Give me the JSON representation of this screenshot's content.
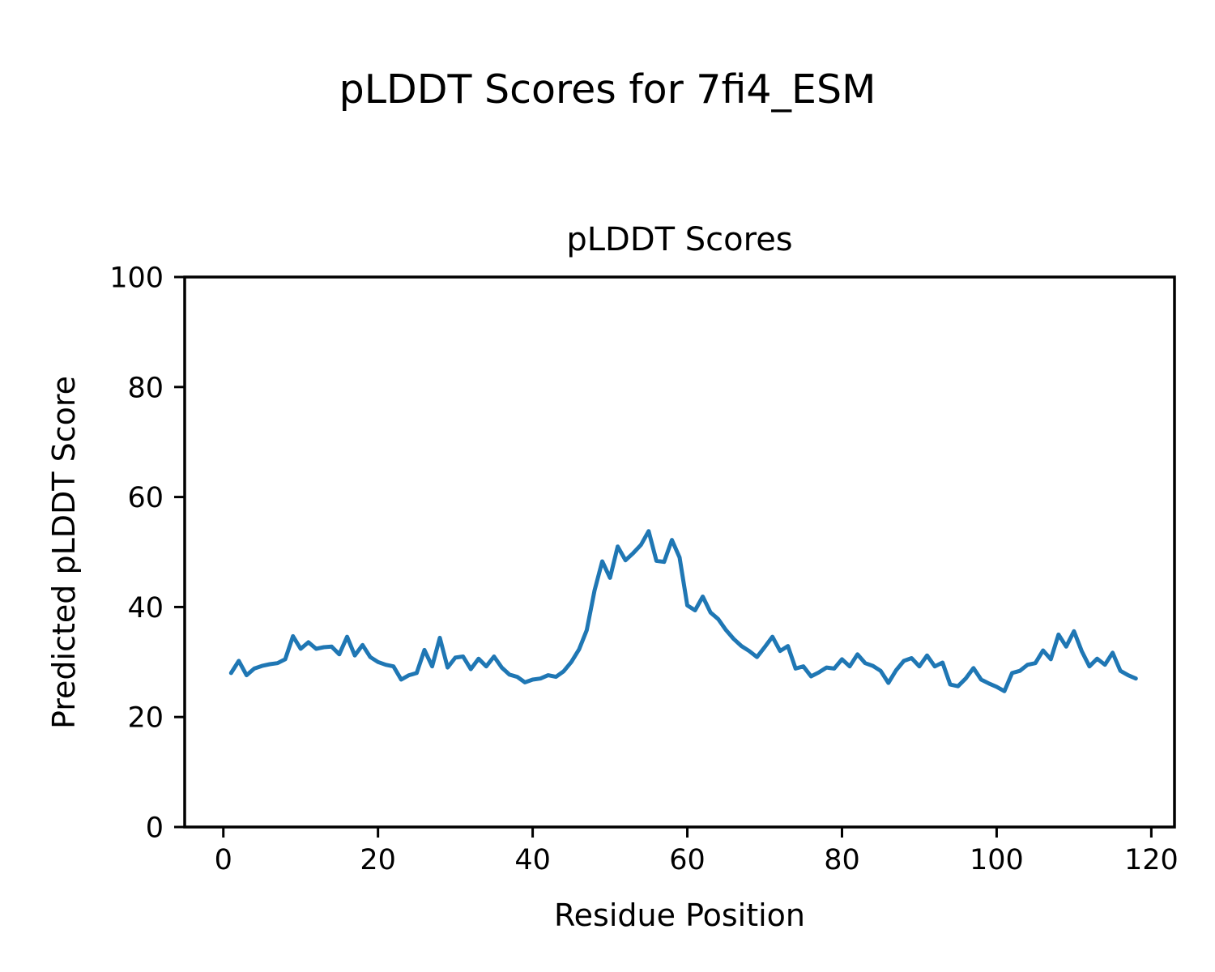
{
  "figure": {
    "suptitle": "pLDDT Scores for 7fi4_ESM"
  },
  "chart_data": {
    "type": "line",
    "title": "pLDDT Scores",
    "xlabel": "Residue Position",
    "ylabel": "Predicted pLDDT Score",
    "xlim": [
      -5,
      123
    ],
    "ylim": [
      0,
      100
    ],
    "xticks": [
      0,
      20,
      40,
      60,
      80,
      100,
      120
    ],
    "yticks": [
      0,
      20,
      40,
      60,
      80,
      100
    ],
    "grid": false,
    "legend_position": "none",
    "line_color": "#1f77b4",
    "line_width": 5,
    "spine_color": "#000000",
    "series": [
      {
        "name": "pLDDT",
        "x": [
          1,
          2,
          3,
          4,
          5,
          6,
          7,
          8,
          9,
          10,
          11,
          12,
          13,
          14,
          15,
          16,
          17,
          18,
          19,
          20,
          21,
          22,
          23,
          24,
          25,
          26,
          27,
          28,
          29,
          30,
          31,
          32,
          33,
          34,
          35,
          36,
          37,
          38,
          39,
          40,
          41,
          42,
          43,
          44,
          45,
          46,
          47,
          48,
          49,
          50,
          51,
          52,
          53,
          54,
          55,
          56,
          57,
          58,
          59,
          60,
          61,
          62,
          63,
          64,
          65,
          66,
          67,
          68,
          69,
          70,
          71,
          72,
          73,
          74,
          75,
          76,
          77,
          78,
          79,
          80,
          81,
          82,
          83,
          84,
          85,
          86,
          87,
          88,
          89,
          90,
          91,
          92,
          93,
          94,
          95,
          96,
          97,
          98,
          99,
          100,
          101,
          102,
          103,
          104,
          105,
          106,
          107,
          108,
          109,
          110,
          111,
          112,
          113,
          114,
          115,
          116,
          117,
          118
        ],
        "y": [
          28.0,
          30.2,
          27.6,
          28.8,
          29.3,
          29.6,
          29.8,
          30.5,
          34.7,
          32.4,
          33.6,
          32.4,
          32.7,
          32.8,
          31.4,
          34.6,
          31.2,
          33.1,
          30.9,
          30.0,
          29.5,
          29.2,
          26.8,
          27.6,
          28.0,
          32.2,
          29.2,
          34.4,
          29.0,
          30.8,
          31.0,
          28.7,
          30.6,
          29.2,
          31.0,
          29.0,
          27.7,
          27.3,
          26.3,
          26.8,
          27.0,
          27.6,
          27.3,
          28.3,
          30.0,
          32.3,
          35.8,
          43.0,
          48.3,
          45.3,
          51.0,
          48.5,
          49.8,
          51.3,
          53.8,
          48.4,
          48.2,
          52.2,
          49.0,
          40.3,
          39.4,
          41.9,
          39.0,
          37.8,
          35.8,
          34.2,
          32.9,
          32.0,
          30.9,
          32.7,
          34.6,
          32.0,
          32.9,
          28.8,
          29.2,
          27.4,
          28.1,
          29.0,
          28.8,
          30.5,
          29.2,
          31.4,
          29.8,
          29.3,
          28.4,
          26.2,
          28.5,
          30.2,
          30.7,
          29.2,
          31.2,
          29.2,
          29.9,
          25.9,
          25.6,
          27.0,
          28.9,
          26.8,
          26.1,
          25.5,
          24.7,
          28.0,
          28.4,
          29.5,
          29.8,
          32.1,
          30.5,
          35.0,
          32.8,
          35.6,
          32.0,
          29.2,
          30.6,
          29.5,
          31.7,
          28.4,
          27.6,
          27.0
        ]
      }
    ]
  }
}
